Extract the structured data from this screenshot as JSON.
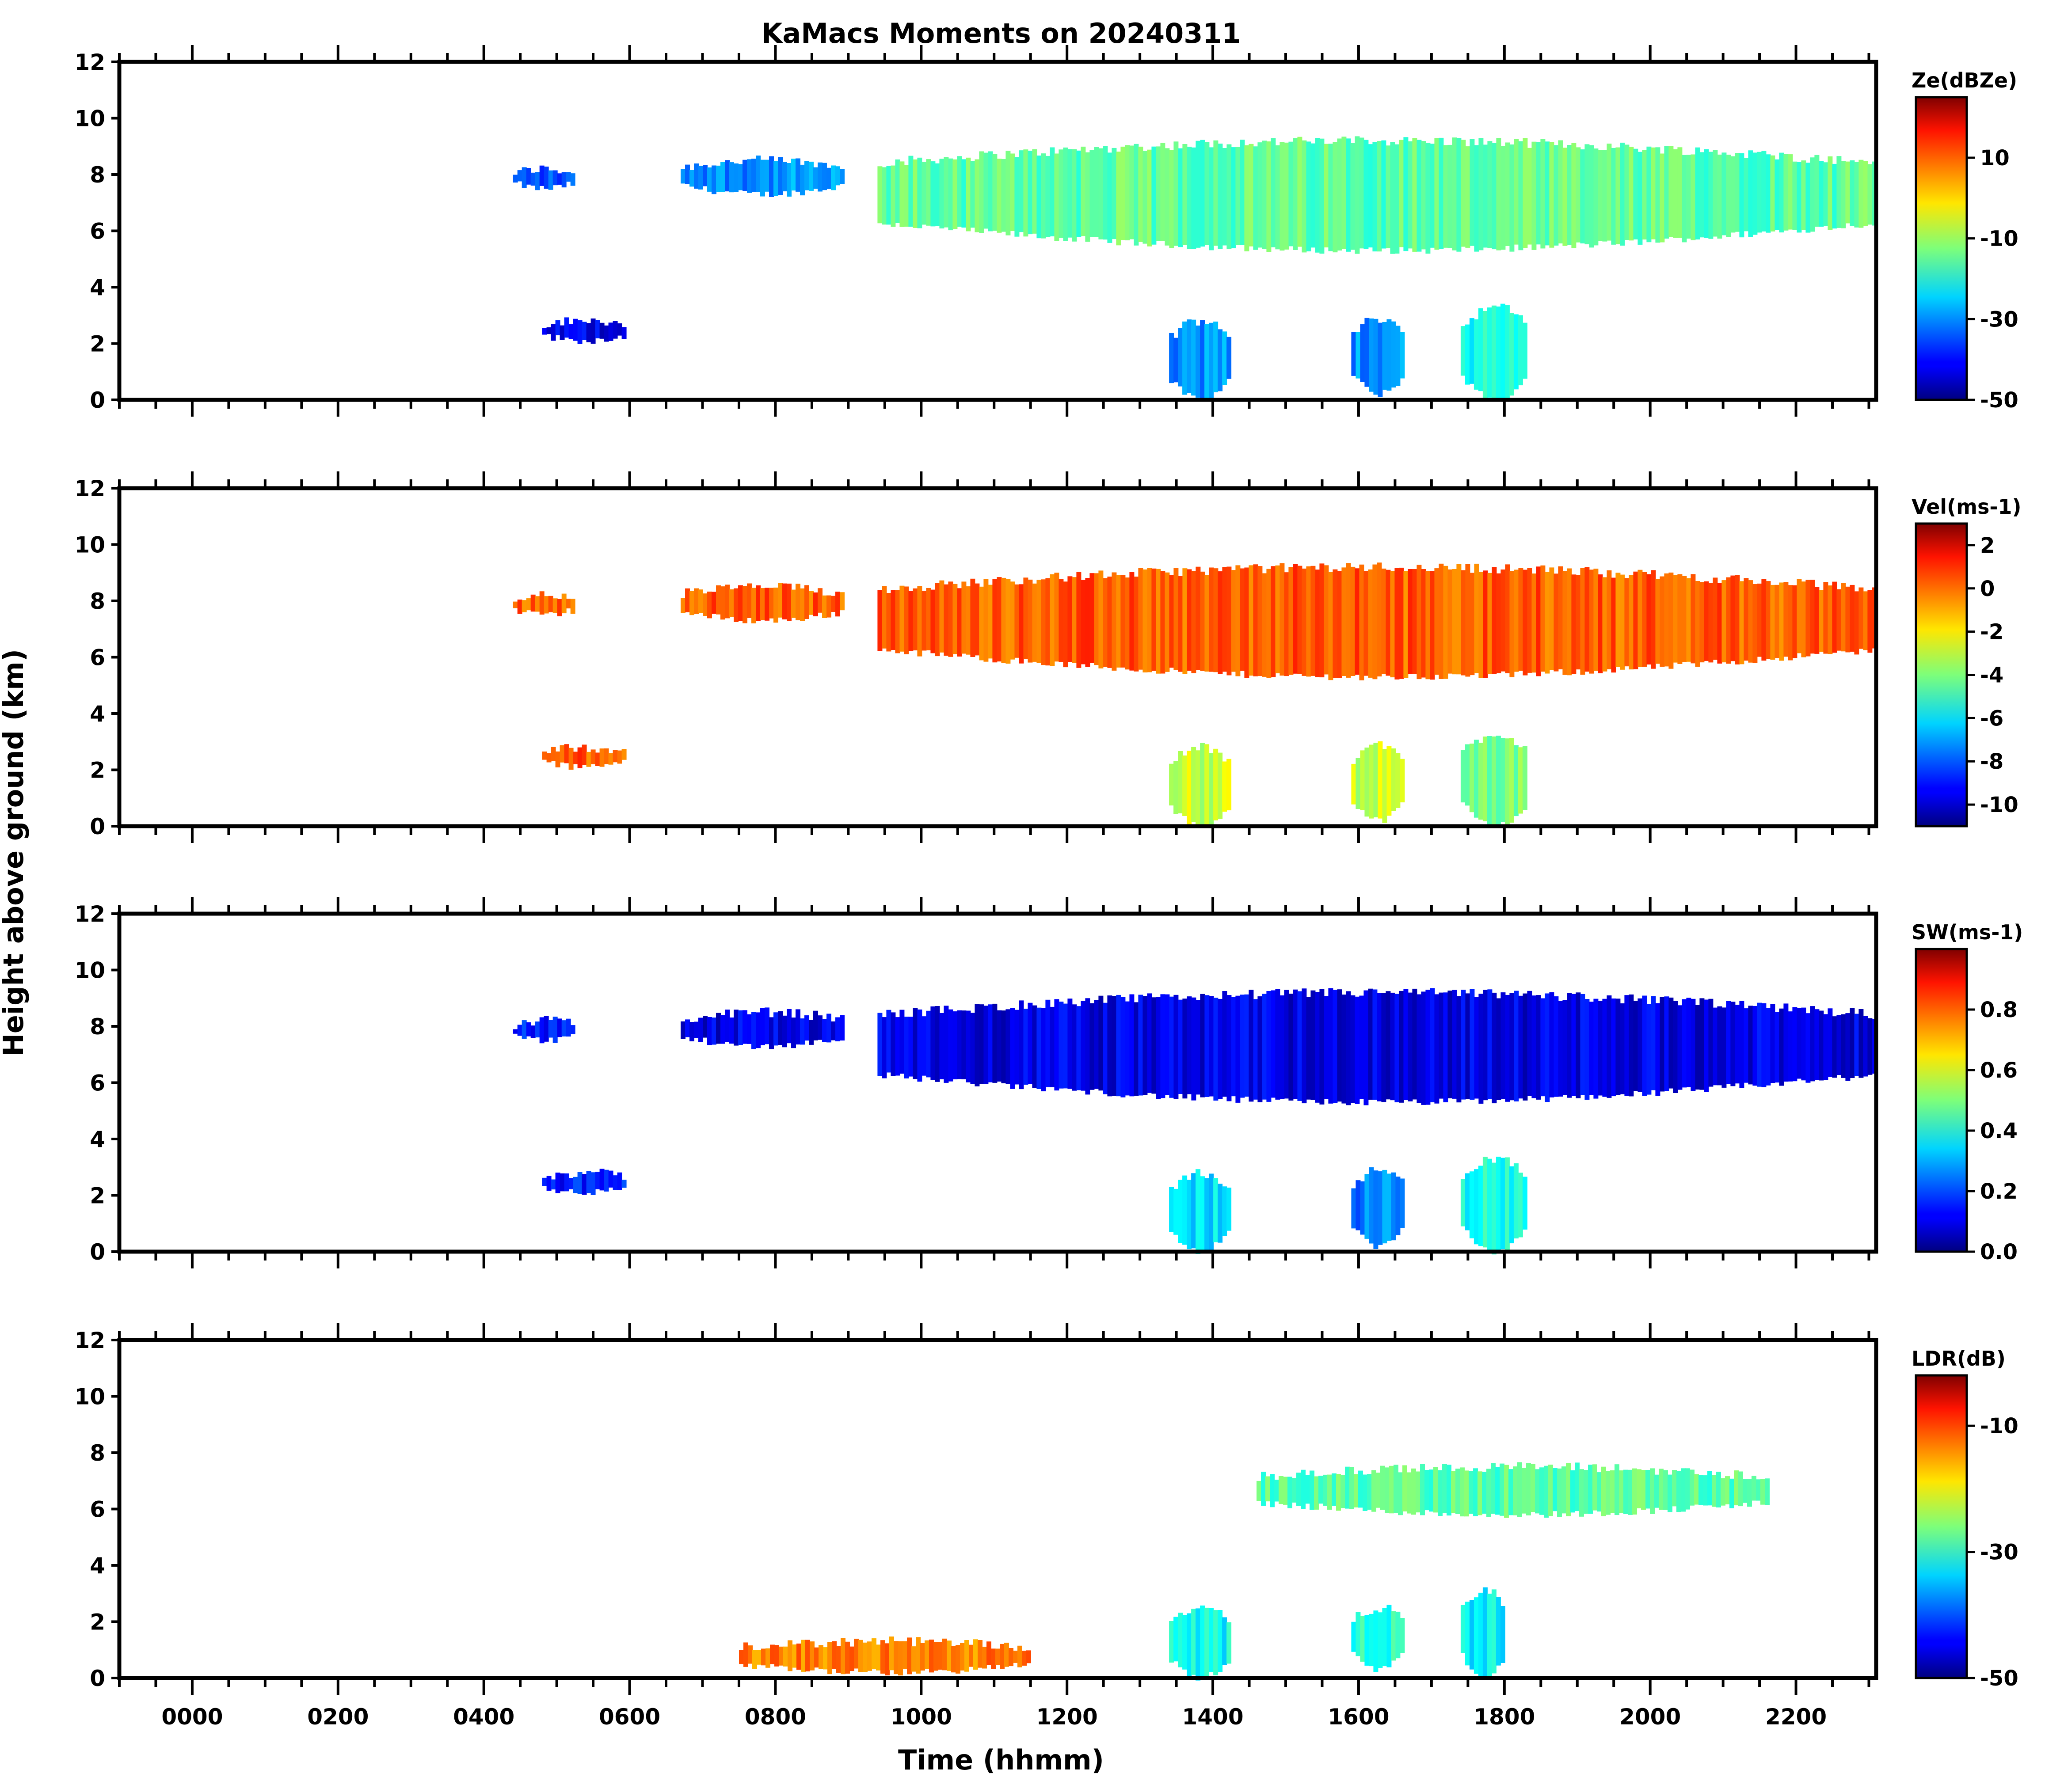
{
  "chart_data": {
    "type": "heatmap",
    "title": "KaMacs Moments on 20240311",
    "xlabel": "Time (hhmm)",
    "ylabel": "Height above ground (km)",
    "x_ticks": [
      "0000",
      "0200",
      "0400",
      "0600",
      "0800",
      "1000",
      "1200",
      "1400",
      "1600",
      "1800",
      "2000",
      "2200"
    ],
    "x_tick_hours": [
      0,
      2,
      4,
      6,
      8,
      10,
      12,
      14,
      16,
      18,
      20,
      22
    ],
    "xlim_hours": [
      -1.0,
      23.1
    ],
    "ylim": [
      0,
      12
    ],
    "y_ticks": [
      "0",
      "2",
      "4",
      "6",
      "8",
      "10",
      "12"
    ],
    "y_tick_values": [
      0,
      2,
      4,
      6,
      8,
      10,
      12
    ],
    "colormap": "jet",
    "panels": [
      {
        "id": "ze",
        "colorbar_label": "Ze(dBZe)",
        "colorbar_ticks": [
          "-50",
          "-30",
          "-10",
          "10"
        ],
        "colorbar_tick_values": [
          -50,
          -30,
          -10,
          10
        ],
        "clim": [
          -50,
          25
        ],
        "cloud_regions": [
          {
            "t0": 4.4,
            "t1": 5.2,
            "base": 7.5,
            "top": 8.2,
            "value": -35
          },
          {
            "t0": 6.7,
            "t1": 8.9,
            "base": 7.3,
            "top": 8.5,
            "value": -30
          },
          {
            "t0": 9.4,
            "t1": 23.1,
            "base": 5.3,
            "top": 9.2,
            "value": -15
          },
          {
            "t0": 4.8,
            "t1": 5.9,
            "base": 2.1,
            "top": 2.8,
            "value": -42
          },
          {
            "t0": 13.4,
            "t1": 14.2,
            "base": 0.0,
            "top": 2.8,
            "value": -30
          },
          {
            "t0": 15.9,
            "t1": 16.6,
            "base": 0.2,
            "top": 2.9,
            "value": -30
          },
          {
            "t0": 17.4,
            "t1": 18.3,
            "base": 0.0,
            "top": 3.3,
            "value": -20
          }
        ]
      },
      {
        "id": "vel",
        "colorbar_label": "Vel(ms-1)",
        "colorbar_ticks": [
          "-10",
          "-8",
          "-6",
          "-4",
          "-2",
          "0",
          "2"
        ],
        "colorbar_tick_values": [
          -10,
          -8,
          -6,
          -4,
          -2,
          0,
          2
        ],
        "clim": [
          -11,
          3
        ],
        "cloud_regions": [
          {
            "t0": 4.4,
            "t1": 5.2,
            "base": 7.5,
            "top": 8.2,
            "value": 0
          },
          {
            "t0": 6.7,
            "t1": 8.9,
            "base": 7.3,
            "top": 8.5,
            "value": 0
          },
          {
            "t0": 9.4,
            "t1": 23.1,
            "base": 5.3,
            "top": 9.2,
            "value": 0
          },
          {
            "t0": 4.8,
            "t1": 5.9,
            "base": 2.1,
            "top": 2.8,
            "value": 0
          },
          {
            "t0": 13.4,
            "t1": 14.2,
            "base": 0.0,
            "top": 2.8,
            "value": -3
          },
          {
            "t0": 15.9,
            "t1": 16.6,
            "base": 0.2,
            "top": 2.9,
            "value": -3
          },
          {
            "t0": 17.4,
            "t1": 18.3,
            "base": 0.0,
            "top": 3.3,
            "value": -4
          }
        ]
      },
      {
        "id": "sw",
        "colorbar_label": "SW(ms-1)",
        "colorbar_ticks": [
          "0.0",
          "0.2",
          "0.4",
          "0.6",
          "0.8"
        ],
        "colorbar_tick_values": [
          0.0,
          0.2,
          0.4,
          0.6,
          0.8
        ],
        "clim": [
          0.0,
          1.0
        ],
        "cloud_regions": [
          {
            "t0": 4.4,
            "t1": 5.2,
            "base": 7.5,
            "top": 8.2,
            "value": 0.15
          },
          {
            "t0": 6.7,
            "t1": 8.9,
            "base": 7.3,
            "top": 8.5,
            "value": 0.1
          },
          {
            "t0": 9.4,
            "t1": 23.1,
            "base": 5.3,
            "top": 9.2,
            "value": 0.1
          },
          {
            "t0": 4.8,
            "t1": 5.9,
            "base": 2.1,
            "top": 2.8,
            "value": 0.15
          },
          {
            "t0": 13.4,
            "t1": 14.2,
            "base": 0.0,
            "top": 2.8,
            "value": 0.35
          },
          {
            "t0": 15.9,
            "t1": 16.6,
            "base": 0.2,
            "top": 2.9,
            "value": 0.25
          },
          {
            "t0": 17.4,
            "t1": 18.3,
            "base": 0.0,
            "top": 3.3,
            "value": 0.4
          }
        ]
      },
      {
        "id": "ldr",
        "colorbar_label": "LDR(dB)",
        "colorbar_ticks": [
          "-50",
          "-30",
          "-10"
        ],
        "colorbar_tick_values": [
          -50,
          -30,
          -10
        ],
        "clim": [
          -50,
          -2
        ],
        "cloud_regions": [
          {
            "t0": 14.6,
            "t1": 21.6,
            "base": 5.8,
            "top": 7.5,
            "value": -28
          },
          {
            "t0": 13.4,
            "t1": 14.2,
            "base": 0.0,
            "top": 2.5,
            "value": -32
          },
          {
            "t0": 15.9,
            "t1": 16.6,
            "base": 0.3,
            "top": 2.5,
            "value": -30
          },
          {
            "t0": 17.4,
            "t1": 18.0,
            "base": 0.0,
            "top": 3.1,
            "value": -32
          },
          {
            "t0": 7.5,
            "t1": 11.5,
            "base": 0.2,
            "top": 1.3,
            "value": -14
          }
        ]
      }
    ]
  }
}
